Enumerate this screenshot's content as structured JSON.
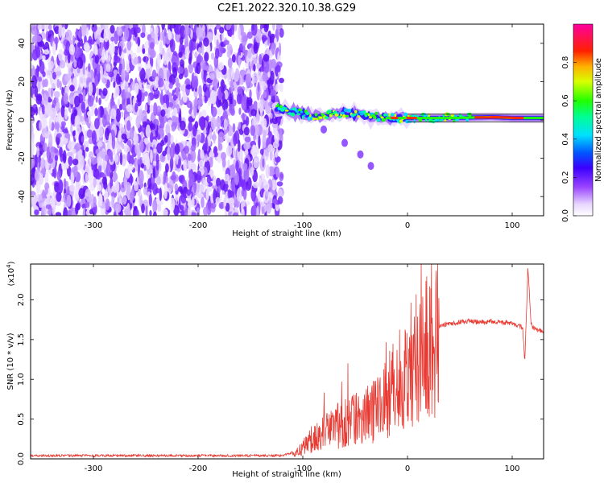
{
  "chart_data": [
    {
      "type": "heatmap",
      "title": "C2E1.2022.320.10.38.G29",
      "xlabel": "Height of straight line (km)",
      "ylabel": "Frequency (Hz)",
      "xlim": [
        -360,
        130
      ],
      "ylim": [
        -50,
        50
      ],
      "x_ticks": [
        -300,
        -200,
        -100,
        0,
        100
      ],
      "y_ticks": [
        -40,
        -20,
        0,
        20,
        40
      ],
      "colorbar": {
        "label": "Normalized spectral amplitude",
        "range": [
          0.0,
          1.0
        ],
        "ticks": [
          "0.0",
          "0.2",
          "0.4",
          "0.6",
          "0.8"
        ]
      },
      "regions": [
        {
          "x_range": [
            -360,
            -120
          ],
          "freq_range": [
            -50,
            50
          ],
          "description_amplitude": 0.15
        },
        {
          "x_range": [
            -125,
            130
          ],
          "freq_center": [
            6,
            3,
            2,
            4,
            2,
            1,
            1,
            1,
            1,
            1
          ],
          "amplitude_peak": 0.9
        }
      ],
      "ridge": [
        {
          "x": -125,
          "f": 6
        },
        {
          "x": -100,
          "f": 3
        },
        {
          "x": -80,
          "f": 2
        },
        {
          "x": -60,
          "f": 4
        },
        {
          "x": -40,
          "f": 2
        },
        {
          "x": -20,
          "f": 1
        },
        {
          "x": 0,
          "f": 1
        },
        {
          "x": 40,
          "f": 1
        },
        {
          "x": 80,
          "f": 1.5
        },
        {
          "x": 100,
          "f": 1
        },
        {
          "x": 130,
          "f": 1
        }
      ],
      "branch": [
        {
          "x": -80,
          "f": -5
        },
        {
          "x": -60,
          "f": -12
        },
        {
          "x": -45,
          "f": -18
        },
        {
          "x": -35,
          "f": -24
        }
      ]
    },
    {
      "type": "line",
      "xlabel": "Height of straight line (km)",
      "ylabel": "SNR (10 * v/v)",
      "y_multiplier": "(x10",
      "y_multiplier_exp": "4",
      "y_multiplier_close": ")",
      "xlim": [
        -360,
        130
      ],
      "ylim": [
        0,
        2.45
      ],
      "x_ticks": [
        -300,
        -200,
        -100,
        0,
        100
      ],
      "y_ticks": [
        "0.0",
        "0.5",
        "1.0",
        "1.5",
        "2.0"
      ],
      "color": "#e83a32",
      "series": [
        {
          "x": [
            -360,
            -300,
            -200,
            -120,
            -105,
            -95,
            -85,
            -75,
            -65,
            -55,
            -45,
            -35,
            -25,
            -15,
            -10,
            -5,
            0,
            5,
            10,
            15,
            20,
            25,
            30,
            40,
            50,
            60,
            70,
            80,
            90,
            100,
            105,
            110,
            112,
            115,
            118,
            120,
            125,
            130
          ],
          "y": [
            0.04,
            0.04,
            0.04,
            0.04,
            0.1,
            0.25,
            0.35,
            0.45,
            0.5,
            0.55,
            0.6,
            0.65,
            0.8,
            1.0,
            1.1,
            1.2,
            1.3,
            1.45,
            1.55,
            1.6,
            1.62,
            1.65,
            1.67,
            1.7,
            1.72,
            1.73,
            1.72,
            1.73,
            1.72,
            1.7,
            1.68,
            1.65,
            1.2,
            2.4,
            1.7,
            1.65,
            1.62,
            1.6
          ]
        }
      ]
    }
  ]
}
